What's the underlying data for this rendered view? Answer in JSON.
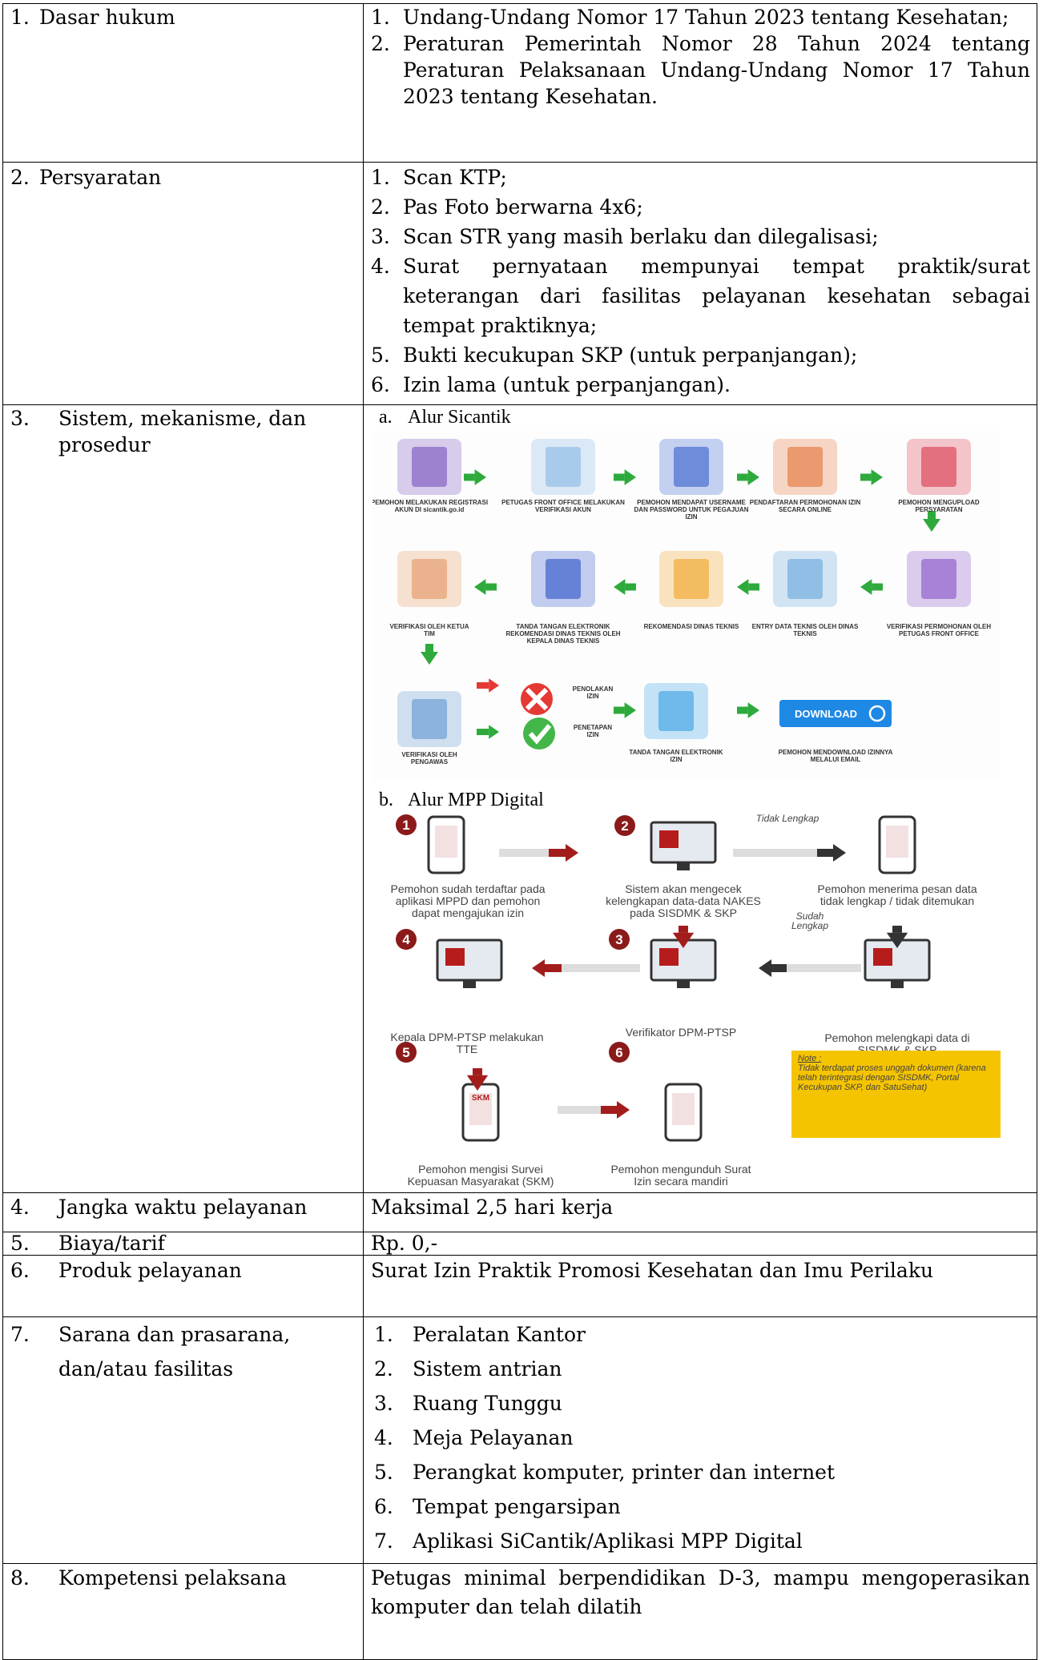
{
  "table": {
    "rows": [
      {
        "number": "1.",
        "label": "Dasar hukum",
        "items": [
          {
            "marker": "1.",
            "text": "Undang-Undang Nomor 17 Tahun 2023 tentang Kesehatan;"
          },
          {
            "marker": "2.",
            "text": "Peraturan Pemerintah Nomor 28 Tahun 2024 tentang Peraturan Pelaksanaan Undang-Undang Nomor 17 Tahun 2023 tentang Kesehatan."
          }
        ]
      },
      {
        "number": "2.",
        "label": "Persyaratan",
        "items": [
          {
            "marker": "1.",
            "text": "Scan  KTP;"
          },
          {
            "marker": "2.",
            "text": "Pas Foto berwarna 4x6;"
          },
          {
            "marker": "3.",
            "text": "Scan STR yang masih berlaku dan dilegalisasi;"
          },
          {
            "marker": "4.",
            "text": "Surat pernyataan mempunyai tempat praktik/surat keterangan dari fasilitas pelayanan kesehatan sebagai tempat praktiknya;"
          },
          {
            "marker": "5.",
            "text": "Bukti kecukupan SKP (untuk perpanjangan);"
          },
          {
            "marker": "6.",
            "text": "Izin lama (untuk perpanjangan)."
          }
        ]
      },
      {
        "number": "3.",
        "label": "Sistem, mekanisme, dan prosedur",
        "flows": [
          {
            "marker": "a.",
            "title": "Alur Sicantik",
            "labels": [
              "PEMOHON MELAKUKAN REGISTRASI AKUN DI sicantik.go.id",
              "PETUGAS FRONT OFFICE MELAKUKAN VERIFIKASI AKUN",
              "PEMOHON MENDAPAT USERNAME DAN PASSWORD UNTUK PEGAJUAN IZIN",
              "PENDAFTARAN PERMOHONAN IZIN SECARA ONLINE",
              "PEMOHON MENGUPLOAD PERSYARATAN",
              "VERIFIKASI PERMOHONAN OLEH PETUGAS FRONT OFFICE",
              "ENTRY DATA TEKNIS OLEH DINAS TEKNIS",
              "REKOMENDASI DINAS TEKNIS",
              "TANDA TANGAN ELEKTRONIK REKOMENDASI DINAS TEKNIS OLEH KEPALA DINAS TEKNIS",
              "VERIFIKASI OLEH KETUA TIM",
              "VERIFIKASI OLEH PENGAWAS",
              "PENOLAKAN IZIN",
              "PENETAPAN IZIN",
              "TANDA TANGAN ELEKTRONIK IZIN",
              "PEMOHON MENDOWNLOAD IZINNYA MELALUI EMAIL"
            ],
            "button": "DOWNLOAD"
          },
          {
            "marker": "b.",
            "title": "Alur MPP Digital",
            "steps": [
              {
                "number": "1",
                "text": "Pemohon sudah terdaftar pada aplikasi MPPD dan pemohon dapat mengajukan izin"
              },
              {
                "number": "2",
                "text": "Sistem akan mengecek kelengkapan data-data NAKES pada SISDMK & SKP"
              },
              {
                "number": "3",
                "text": "Verifikator DPM-PTSP"
              },
              {
                "number": "4",
                "text": "Kepala DPM-PTSP melakukan TTE"
              },
              {
                "number": "5",
                "text": "Pemohon mengisi Survei Kepuasan Masyarakat (SKM)"
              },
              {
                "number": "6",
                "text": "Pemohon mengunduh Surat Izin secara mandiri"
              }
            ],
            "states": [
              "Pemohon menerima pesan data tidak lengkap / tidak ditemukan",
              "Pemohon melengkapi data di SISDMK & SKP"
            ],
            "branches": [
              "Tidak Lengkap",
              "Sudah Lengkap"
            ],
            "icon_text": "SKM",
            "note": {
              "title": "Note :",
              "text": "Tidak terdapat proses unggah dokumen (karena telah terintegrasi dengan SISDMK, Portal Kecukupan SKP, dan SatuSehat)"
            }
          }
        ]
      },
      {
        "number": "4.",
        "label": "Jangka waktu pelayanan",
        "text": "Maksimal 2,5 hari kerja"
      },
      {
        "number": "5.",
        "label": "Biaya/tarif",
        "text": "Rp. 0,-"
      },
      {
        "number": "6.",
        "label": "Produk pelayanan",
        "text": "Surat Izin Praktik Promosi Kesehatan dan Imu Perilaku"
      },
      {
        "number": "7.",
        "label": "Sarana dan prasarana, dan/atau fasilitas",
        "items": [
          {
            "marker": "1.",
            "text": "Peralatan Kantor"
          },
          {
            "marker": "2.",
            "text": "Sistem antrian"
          },
          {
            "marker": "3.",
            "text": "Ruang Tunggu"
          },
          {
            "marker": "4.",
            "text": "Meja Pelayanan"
          },
          {
            "marker": "5.",
            "text": "Perangkat komputer, printer dan internet"
          },
          {
            "marker": "6.",
            "text": "Tempat pengarsipan"
          },
          {
            "marker": "7.",
            "text": "Aplikasi SiCantik/Aplikasi MPP Digital"
          }
        ]
      },
      {
        "number": "8.",
        "label": "Kompetensi pelaksana",
        "text": "Petugas minimal berpendidikan D-3, mampu mengoperasikan komputer dan telah dilatih"
      }
    ]
  }
}
